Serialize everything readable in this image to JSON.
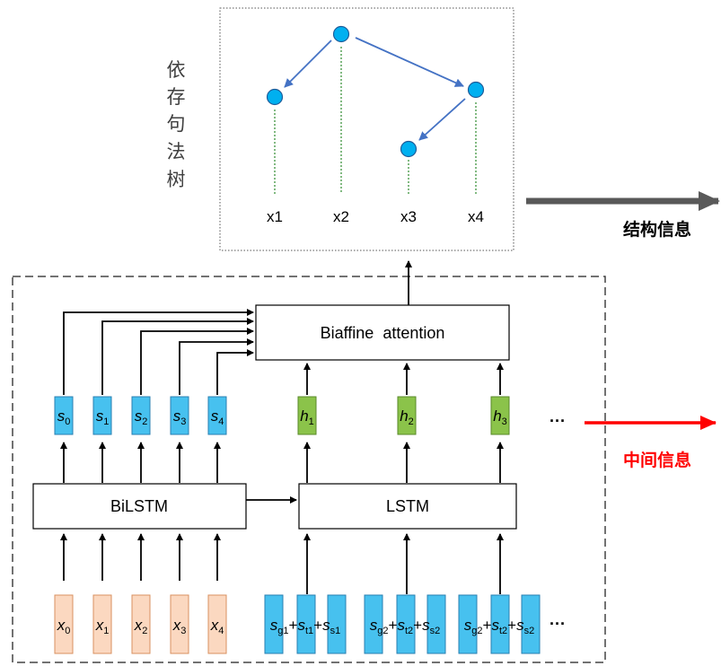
{
  "tree": {
    "side_label": [
      "依",
      "存",
      "句",
      "法",
      "树"
    ],
    "words": [
      "x1",
      "x2",
      "x3",
      "x4"
    ]
  },
  "modules": {
    "biaffine": "Biaffine  attention",
    "bilstm": "BiLSTM",
    "lstm": "LSTM"
  },
  "outputs": {
    "structure_info": "结构信息",
    "intermediate_info": "中间信息",
    "ellipsis": "···"
  },
  "s_vectors": [
    {
      "base": "s",
      "sub": "0"
    },
    {
      "base": "s",
      "sub": "1"
    },
    {
      "base": "s",
      "sub": "2"
    },
    {
      "base": "s",
      "sub": "3"
    },
    {
      "base": "s",
      "sub": "4"
    }
  ],
  "h_vectors": [
    {
      "base": "h",
      "sub": "1"
    },
    {
      "base": "h",
      "sub": "2"
    },
    {
      "base": "h",
      "sub": "3"
    }
  ],
  "x_inputs": [
    {
      "base": "x",
      "sub": "0"
    },
    {
      "base": "x",
      "sub": "1"
    },
    {
      "base": "x",
      "sub": "2"
    },
    {
      "base": "x",
      "sub": "3"
    },
    {
      "base": "x",
      "sub": "4"
    }
  ],
  "group_inputs": [
    [
      {
        "base": "s",
        "sub": "g1"
      },
      {
        "base": "s",
        "sub": "t1"
      },
      {
        "base": "s",
        "sub": "s1"
      }
    ],
    [
      {
        "base": "s",
        "sub": "g2"
      },
      {
        "base": "s",
        "sub": "t2"
      },
      {
        "base": "s",
        "sub": "s2"
      }
    ],
    [
      {
        "base": "s",
        "sub": "g2"
      },
      {
        "base": "s",
        "sub": "t2"
      },
      {
        "base": "s",
        "sub": "s2"
      }
    ]
  ],
  "plus": "+",
  "colors": {
    "node": "#00b0f0",
    "tree_arrow": "#4472c4",
    "dotted_green": "#2e8b2e",
    "blue_vec": "#47c1ef",
    "green_vec": "#8bc34a",
    "orange_vec": "#fbd8c0",
    "red_arrow": "#ff0000",
    "grey_arrow": "#595959"
  }
}
